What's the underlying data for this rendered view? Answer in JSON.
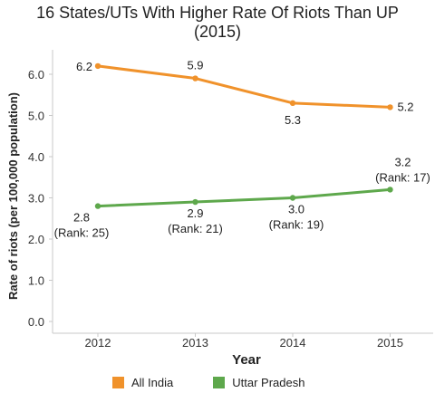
{
  "chart_data": {
    "type": "line",
    "title_lines": [
      "16 States/UTs With Higher Rate Of Riots Than UP",
      "(2015)"
    ],
    "xlabel": "Year",
    "ylabel": "Rate of riots (per 100,000 population)",
    "categories": [
      "2012",
      "2013",
      "2014",
      "2015"
    ],
    "ylim": [
      0,
      6.5
    ],
    "yticks": [
      "0.0",
      "1.0",
      "2.0",
      "3.0",
      "4.0",
      "5.0",
      "6.0"
    ],
    "grid": false,
    "legend_position": "bottom",
    "series": [
      {
        "name": "All India",
        "color": "#f0922b",
        "values": [
          6.2,
          5.9,
          5.3,
          5.2
        ],
        "labels": [
          [
            "6.2"
          ],
          [
            "5.9"
          ],
          [
            "5.3"
          ],
          [
            "5.2"
          ]
        ]
      },
      {
        "name": "Uttar Pradesh",
        "color": "#5ea84c",
        "values": [
          2.8,
          2.9,
          3.0,
          3.2
        ],
        "labels": [
          [
            "2.8",
            "(Rank: 25)"
          ],
          [
            "2.9",
            "(Rank: 21)"
          ],
          [
            "3.0",
            "(Rank: 19)"
          ],
          [
            "3.2",
            "(Rank: 17)"
          ]
        ]
      }
    ]
  }
}
